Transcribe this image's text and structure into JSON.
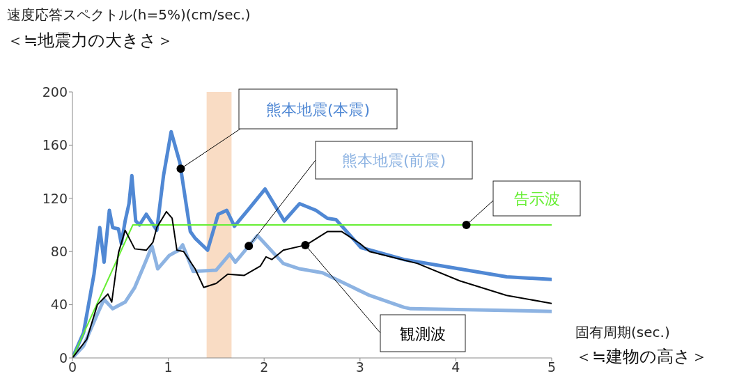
{
  "chart_data": {
    "type": "line",
    "ylabel": "速度応答スペクトル(h=5%)(cm/sec.)",
    "xlabel": "固有周期(sec.)",
    "annotations": [
      "＜≒地震力の大きさ＞",
      "＜≒建物の高さ＞"
    ],
    "xlim": [
      0,
      5
    ],
    "xticks": [
      0,
      1,
      2,
      3,
      4,
      5
    ],
    "ylim": [
      0,
      200
    ],
    "yticks": [
      0,
      40,
      80,
      120,
      160,
      200
    ],
    "grid": false,
    "legend": false,
    "marker": "none",
    "line_style": "solid",
    "bands": [
      {
        "axis": "x",
        "from": 1.4,
        "to": 1.66,
        "color": "#f9dcc4"
      }
    ],
    "series": [
      {
        "name": "熊本地震(本震)",
        "color": "#5088d4",
        "x": [
          0,
          0.116,
          0.225,
          0.285,
          0.33,
          0.385,
          0.42,
          0.48,
          0.51,
          0.55,
          0.59,
          0.62,
          0.66,
          0.7,
          0.77,
          0.88,
          0.95,
          1.03,
          1.12,
          1.23,
          1.28,
          1.41,
          1.52,
          1.61,
          1.69,
          1.84,
          2.01,
          2.21,
          2.37,
          2.54,
          2.66,
          2.75,
          3.01,
          3.46,
          4.53,
          5.0
        ],
        "values": [
          0,
          19,
          63,
          98,
          72,
          111,
          98,
          97,
          86,
          103,
          116,
          137,
          103,
          100,
          108,
          96,
          137,
          170,
          147,
          95,
          90,
          81,
          108,
          111,
          99,
          112,
          127,
          103,
          116,
          111,
          105,
          104,
          83,
          74,
          61,
          59
        ]
      },
      {
        "name": "熊本地震(前震)",
        "color": "#8db3e2",
        "x": [
          0,
          0.116,
          0.26,
          0.33,
          0.42,
          0.55,
          0.65,
          0.75,
          0.83,
          0.89,
          1.01,
          1.11,
          1.15,
          1.26,
          1.5,
          1.64,
          1.7,
          1.93,
          2.2,
          2.37,
          2.61,
          3.1,
          3.46,
          3.53,
          5.0
        ],
        "values": [
          0,
          9,
          33,
          44,
          37,
          42,
          53,
          70,
          84,
          67,
          77,
          81,
          85,
          65,
          66,
          78,
          72,
          92,
          71,
          67,
          64,
          47,
          38,
          37,
          35
        ]
      },
      {
        "name": "告示波",
        "color": "#66ee33",
        "x": [
          0,
          0.63,
          5.0
        ],
        "values": [
          0,
          100,
          100
        ]
      },
      {
        "name": "観測波",
        "color": "#000000",
        "x": [
          0,
          0.15,
          0.26,
          0.37,
          0.41,
          0.48,
          0.55,
          0.65,
          0.77,
          0.84,
          0.88,
          0.98,
          1.04,
          1.09,
          1.16,
          1.28,
          1.37,
          1.5,
          1.62,
          1.79,
          1.96,
          2.02,
          2.08,
          2.2,
          2.44,
          2.66,
          2.81,
          3.0,
          3.1,
          3.6,
          4.04,
          4.53,
          5.0
        ],
        "values": [
          0,
          14,
          40,
          48,
          42,
          79,
          96,
          82,
          81,
          87,
          98,
          110,
          105,
          81,
          80,
          67,
          53,
          56,
          63,
          62,
          69,
          76,
          74,
          81,
          85,
          95,
          95,
          86,
          80,
          71,
          58,
          47,
          41
        ]
      }
    ]
  }
}
